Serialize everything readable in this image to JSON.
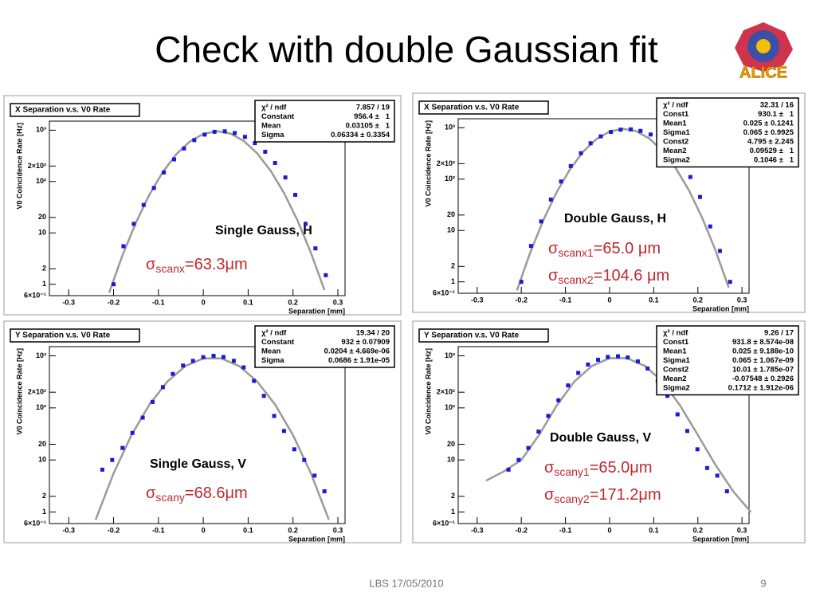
{
  "title": "Check with double Gaussian fit",
  "logo": "ALICE",
  "footer": "LBS 17/05/2010",
  "page_number": "9",
  "chart_data": [
    {
      "type": "scatter",
      "title": "X Separation v.s. V0 Rate",
      "xlabel": "Separation [mm]",
      "ylabel": "V0 Coincidence Rate [Hz]",
      "log_y": true,
      "xlim": [
        -0.343,
        0.316
      ],
      "xticks": [
        -0.3,
        -0.2,
        -0.1,
        0,
        0.1,
        0.2,
        0.3
      ],
      "ylim": [
        0.6,
        1500
      ],
      "yticks": [
        {
          "value": 0.6,
          "label": "6×10⁻¹"
        },
        1,
        2,
        10,
        20,
        {
          "value": 100,
          "label": "10²"
        },
        {
          "value": 200,
          "label": "2×10²"
        },
        {
          "value": 1000,
          "label": "10³"
        }
      ],
      "x": [
        -0.2,
        -0.178,
        -0.155,
        -0.133,
        -0.11,
        -0.088,
        -0.065,
        -0.043,
        -0.02,
        0.003,
        0.025,
        0.048,
        0.07,
        0.093,
        0.115,
        0.138,
        0.16,
        0.183,
        0.205,
        0.228,
        0.25,
        0.273
      ],
      "series": [
        {
          "color": "#1a1adb",
          "values": [
            1,
            5.5,
            15,
            35,
            75,
            150,
            270,
            440,
            640,
            820,
            930,
            950,
            880,
            740,
            560,
            380,
            230,
            120,
            55,
            15,
            5,
            1.5
          ]
        }
      ],
      "fit": {
        "color": "#9a9a9a",
        "x": [
          -0.21,
          -0.18,
          -0.15,
          -0.12,
          -0.09,
          -0.06,
          -0.03,
          0,
          0.03,
          0.06,
          0.09,
          0.12,
          0.15,
          0.18,
          0.21,
          0.24,
          0.27
        ],
        "values": [
          0.68,
          3.7,
          16,
          55.5,
          154,
          340,
          601,
          848,
          956,
          861,
          619,
          356,
          163,
          60,
          17.5,
          4.1,
          0.77
        ]
      },
      "stats": [
        [
          "χ² / ndf",
          "7.857 / 19"
        ],
        [
          "Constant",
          "956.4 ±   1"
        ],
        [
          "Mean",
          "0.03105 ±   1"
        ],
        [
          "Sigma",
          "0.06334 ± 0.3354"
        ]
      ],
      "annotation": {
        "label": "Single Gauss, H",
        "lines": [
          {
            "base": "σ",
            "sub": "scanx",
            "rest": "=63.3μm"
          }
        ]
      }
    },
    {
      "type": "scatter",
      "title": "X Separation v.s. V0 Rate",
      "xlabel": "Separation [mm]",
      "ylabel": "V0 Coincidence Rate [Hz]",
      "log_y": true,
      "xlim": [
        -0.343,
        0.316
      ],
      "xticks": [
        -0.3,
        -0.2,
        -0.1,
        0,
        0.1,
        0.2,
        0.3
      ],
      "ylim": [
        0.6,
        1500
      ],
      "yticks": [
        {
          "value": 0.6,
          "label": "6×10⁻¹"
        },
        1,
        2,
        10,
        20,
        {
          "value": 100,
          "label": "10²"
        },
        {
          "value": 200,
          "label": "2×10²"
        },
        {
          "value": 1000,
          "label": "10³"
        }
      ],
      "x": [
        -0.2,
        -0.178,
        -0.155,
        -0.133,
        -0.11,
        -0.088,
        -0.065,
        -0.043,
        -0.02,
        0.003,
        0.025,
        0.048,
        0.07,
        0.093,
        0.115,
        0.138,
        0.16,
        0.183,
        0.205,
        0.228,
        0.25,
        0.273
      ],
      "series": [
        {
          "color": "#1a1adb",
          "values": [
            1,
            5,
            15,
            40,
            90,
            180,
            320,
            500,
            680,
            830,
            920,
            930,
            870,
            740,
            560,
            370,
            220,
            110,
            45,
            12,
            4,
            1
          ]
        }
      ],
      "fit": {
        "color": "#9a9a9a",
        "x": [
          -0.21,
          -0.18,
          -0.15,
          -0.12,
          -0.09,
          -0.06,
          -0.03,
          0,
          0.03,
          0.06,
          0.09,
          0.12,
          0.15,
          0.18,
          0.21,
          0.24,
          0.27
        ],
        "values": [
          0.68,
          3.7,
          16,
          55.5,
          154,
          340,
          601,
          848,
          956,
          861,
          619,
          356,
          163,
          60,
          17.5,
          4.1,
          0.77
        ]
      },
      "stats": [
        [
          "χ² / ndf",
          "32.31 / 16"
        ],
        [
          "Const1",
          "930.1 ±   1"
        ],
        [
          "Mean1",
          "0.025 ± 0.1241"
        ],
        [
          "Sigma1",
          "0.065 ± 0.9925"
        ],
        [
          "Const2",
          "4.795 ± 2.245"
        ],
        [
          "Mean2",
          "0.09529 ±   1"
        ],
        [
          "Sigma2",
          "0.1046 ±   1"
        ]
      ],
      "annotation": {
        "label": "Double Gauss, H",
        "lines": [
          {
            "base": "σ",
            "sub": "scanx1",
            "rest": "=65.0 μm"
          },
          {
            "base": "σ",
            "sub": "scanx2",
            "rest": "=104.6 μm"
          }
        ]
      }
    },
    {
      "type": "scatter",
      "title": "Y Separation v.s. V0 Rate",
      "xlabel": "Separation [mm]",
      "ylabel": "V0 Coincidence Rate [Hz]",
      "log_y": true,
      "xlim": [
        -0.343,
        0.316
      ],
      "xticks": [
        -0.3,
        -0.2,
        -0.1,
        0,
        0.1,
        0.2,
        0.3
      ],
      "ylim": [
        0.6,
        1500
      ],
      "yticks": [
        {
          "value": 0.6,
          "label": "6×10⁻¹"
        },
        1,
        2,
        10,
        20,
        {
          "value": 100,
          "label": "10²"
        },
        {
          "value": 200,
          "label": "2×10²"
        },
        {
          "value": 1000,
          "label": "10³"
        }
      ],
      "x": [
        -0.225,
        -0.203,
        -0.18,
        -0.158,
        -0.135,
        -0.113,
        -0.09,
        -0.068,
        -0.045,
        -0.023,
        0,
        0.023,
        0.045,
        0.068,
        0.09,
        0.113,
        0.135,
        0.158,
        0.18,
        0.203,
        0.225,
        0.248,
        0.27
      ],
      "series": [
        {
          "color": "#1a1adb",
          "values": [
            6.5,
            10,
            17,
            33,
            65,
            130,
            250,
            450,
            650,
            800,
            940,
            1000,
            950,
            800,
            600,
            330,
            170,
            70,
            36,
            16,
            10,
            5,
            2.5
          ]
        }
      ],
      "fit": {
        "color": "#9a9a9a",
        "x": [
          -0.24,
          -0.2,
          -0.16,
          -0.12,
          -0.08,
          -0.04,
          0,
          0.04,
          0.08,
          0.12,
          0.16,
          0.2,
          0.24,
          0.28
        ],
        "values": [
          0.71,
          5.5,
          30,
          116,
          322,
          636,
          893,
          893,
          636,
          322,
          116,
          30,
          5.5,
          0.71
        ]
      },
      "stats": [
        [
          "χ² / ndf",
          "19.34 / 20"
        ],
        [
          "Constant",
          "932 ± 0.07909"
        ],
        [
          "Mean",
          "0.0204 ± 4.669e-06"
        ],
        [
          "Sigma",
          "0.0686 ± 1.91e-05"
        ]
      ],
      "annotation": {
        "label": "Single Gauss, V",
        "lines": [
          {
            "base": "σ",
            "sub": "scany",
            "rest": "=68.6μm"
          }
        ]
      }
    },
    {
      "type": "scatter",
      "title": "Y Separation v.s. V0 Rate",
      "xlabel": "Separation [mm]",
      "ylabel": "V0 Coincidence Rate [Hz]",
      "log_y": true,
      "xlim": [
        -0.343,
        0.316
      ],
      "xticks": [
        -0.3,
        -0.2,
        -0.1,
        0,
        0.1,
        0.2,
        0.3
      ],
      "ylim": [
        0.6,
        1500
      ],
      "yticks": [
        {
          "value": 0.6,
          "label": "6×10⁻¹"
        },
        1,
        2,
        10,
        20,
        {
          "value": 100,
          "label": "10²"
        },
        {
          "value": 200,
          "label": "2×10²"
        },
        {
          "value": 1000,
          "label": "10³"
        }
      ],
      "x": [
        -0.229,
        -0.206,
        -0.184,
        -0.161,
        -0.139,
        -0.116,
        -0.094,
        -0.071,
        -0.049,
        -0.026,
        -0.004,
        0.019,
        0.041,
        0.064,
        0.086,
        0.109,
        0.131,
        0.154,
        0.176,
        0.199,
        0.221,
        0.244,
        0.266
      ],
      "series": [
        {
          "color": "#1a1adb",
          "values": [
            6.5,
            10,
            17,
            35,
            70,
            140,
            270,
            470,
            680,
            840,
            950,
            980,
            930,
            780,
            570,
            330,
            170,
            75,
            36,
            16,
            7,
            5,
            2.5
          ]
        }
      ],
      "fit": {
        "color": "#9a9a9a",
        "x": [
          -0.28,
          -0.24,
          -0.2,
          -0.16,
          -0.12,
          -0.08,
          -0.04,
          0,
          0.04,
          0.08,
          0.12,
          0.16,
          0.2,
          0.24,
          0.28,
          0.32
        ],
        "values": [
          4,
          6,
          10,
          30,
          110,
          320,
          640,
          900,
          900,
          640,
          320,
          110,
          30,
          8,
          2.5,
          1
        ]
      },
      "stats": [
        [
          "χ² / ndf",
          "9.26 / 17"
        ],
        [
          "Const1",
          "931.8 ± 8.574e-08"
        ],
        [
          "Mean1",
          "0.025 ± 9.188e-10"
        ],
        [
          "Sigma1",
          "0.065 ± 1.067e-09"
        ],
        [
          "Const2",
          "10.01 ± 1.785e-07"
        ],
        [
          "Mean2",
          "-0.07548 ± 0.2926"
        ],
        [
          "Sigma2",
          "0.1712 ± 1.912e-06"
        ]
      ],
      "annotation": {
        "label": "Double Gauss, V",
        "lines": [
          {
            "base": "σ",
            "sub": "scany1",
            "rest": "=65.0μm"
          },
          {
            "base": "σ",
            "sub": "scany2",
            "rest": "=171.2μm"
          }
        ]
      }
    }
  ]
}
